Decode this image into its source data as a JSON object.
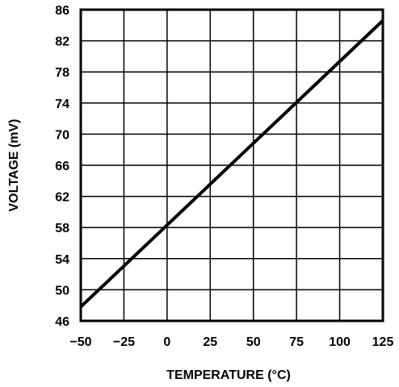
{
  "chart_data": {
    "type": "line",
    "title": "",
    "xlabel": "TEMPERATURE (°C)",
    "ylabel": "VOLTAGE (mV)",
    "xlim": [
      -50,
      125
    ],
    "ylim": [
      46,
      86
    ],
    "x_ticks": [
      -50,
      -25,
      0,
      25,
      50,
      75,
      100,
      125
    ],
    "x_tick_labels": [
      "−50",
      "−25",
      "0",
      "25",
      "50",
      "75",
      "100",
      "125"
    ],
    "y_ticks": [
      46,
      50,
      54,
      58,
      62,
      66,
      70,
      74,
      78,
      82,
      86
    ],
    "y_tick_labels": [
      "46",
      "50",
      "54",
      "58",
      "62",
      "66",
      "70",
      "74",
      "78",
      "82",
      "86"
    ],
    "x_grid_step": 25,
    "y_grid_step": 4,
    "grid": true,
    "legend": "none",
    "series": [
      {
        "x": [
          -50,
          125
        ],
        "values": [
          47.8,
          84.6
        ],
        "color": "#000000"
      }
    ]
  }
}
